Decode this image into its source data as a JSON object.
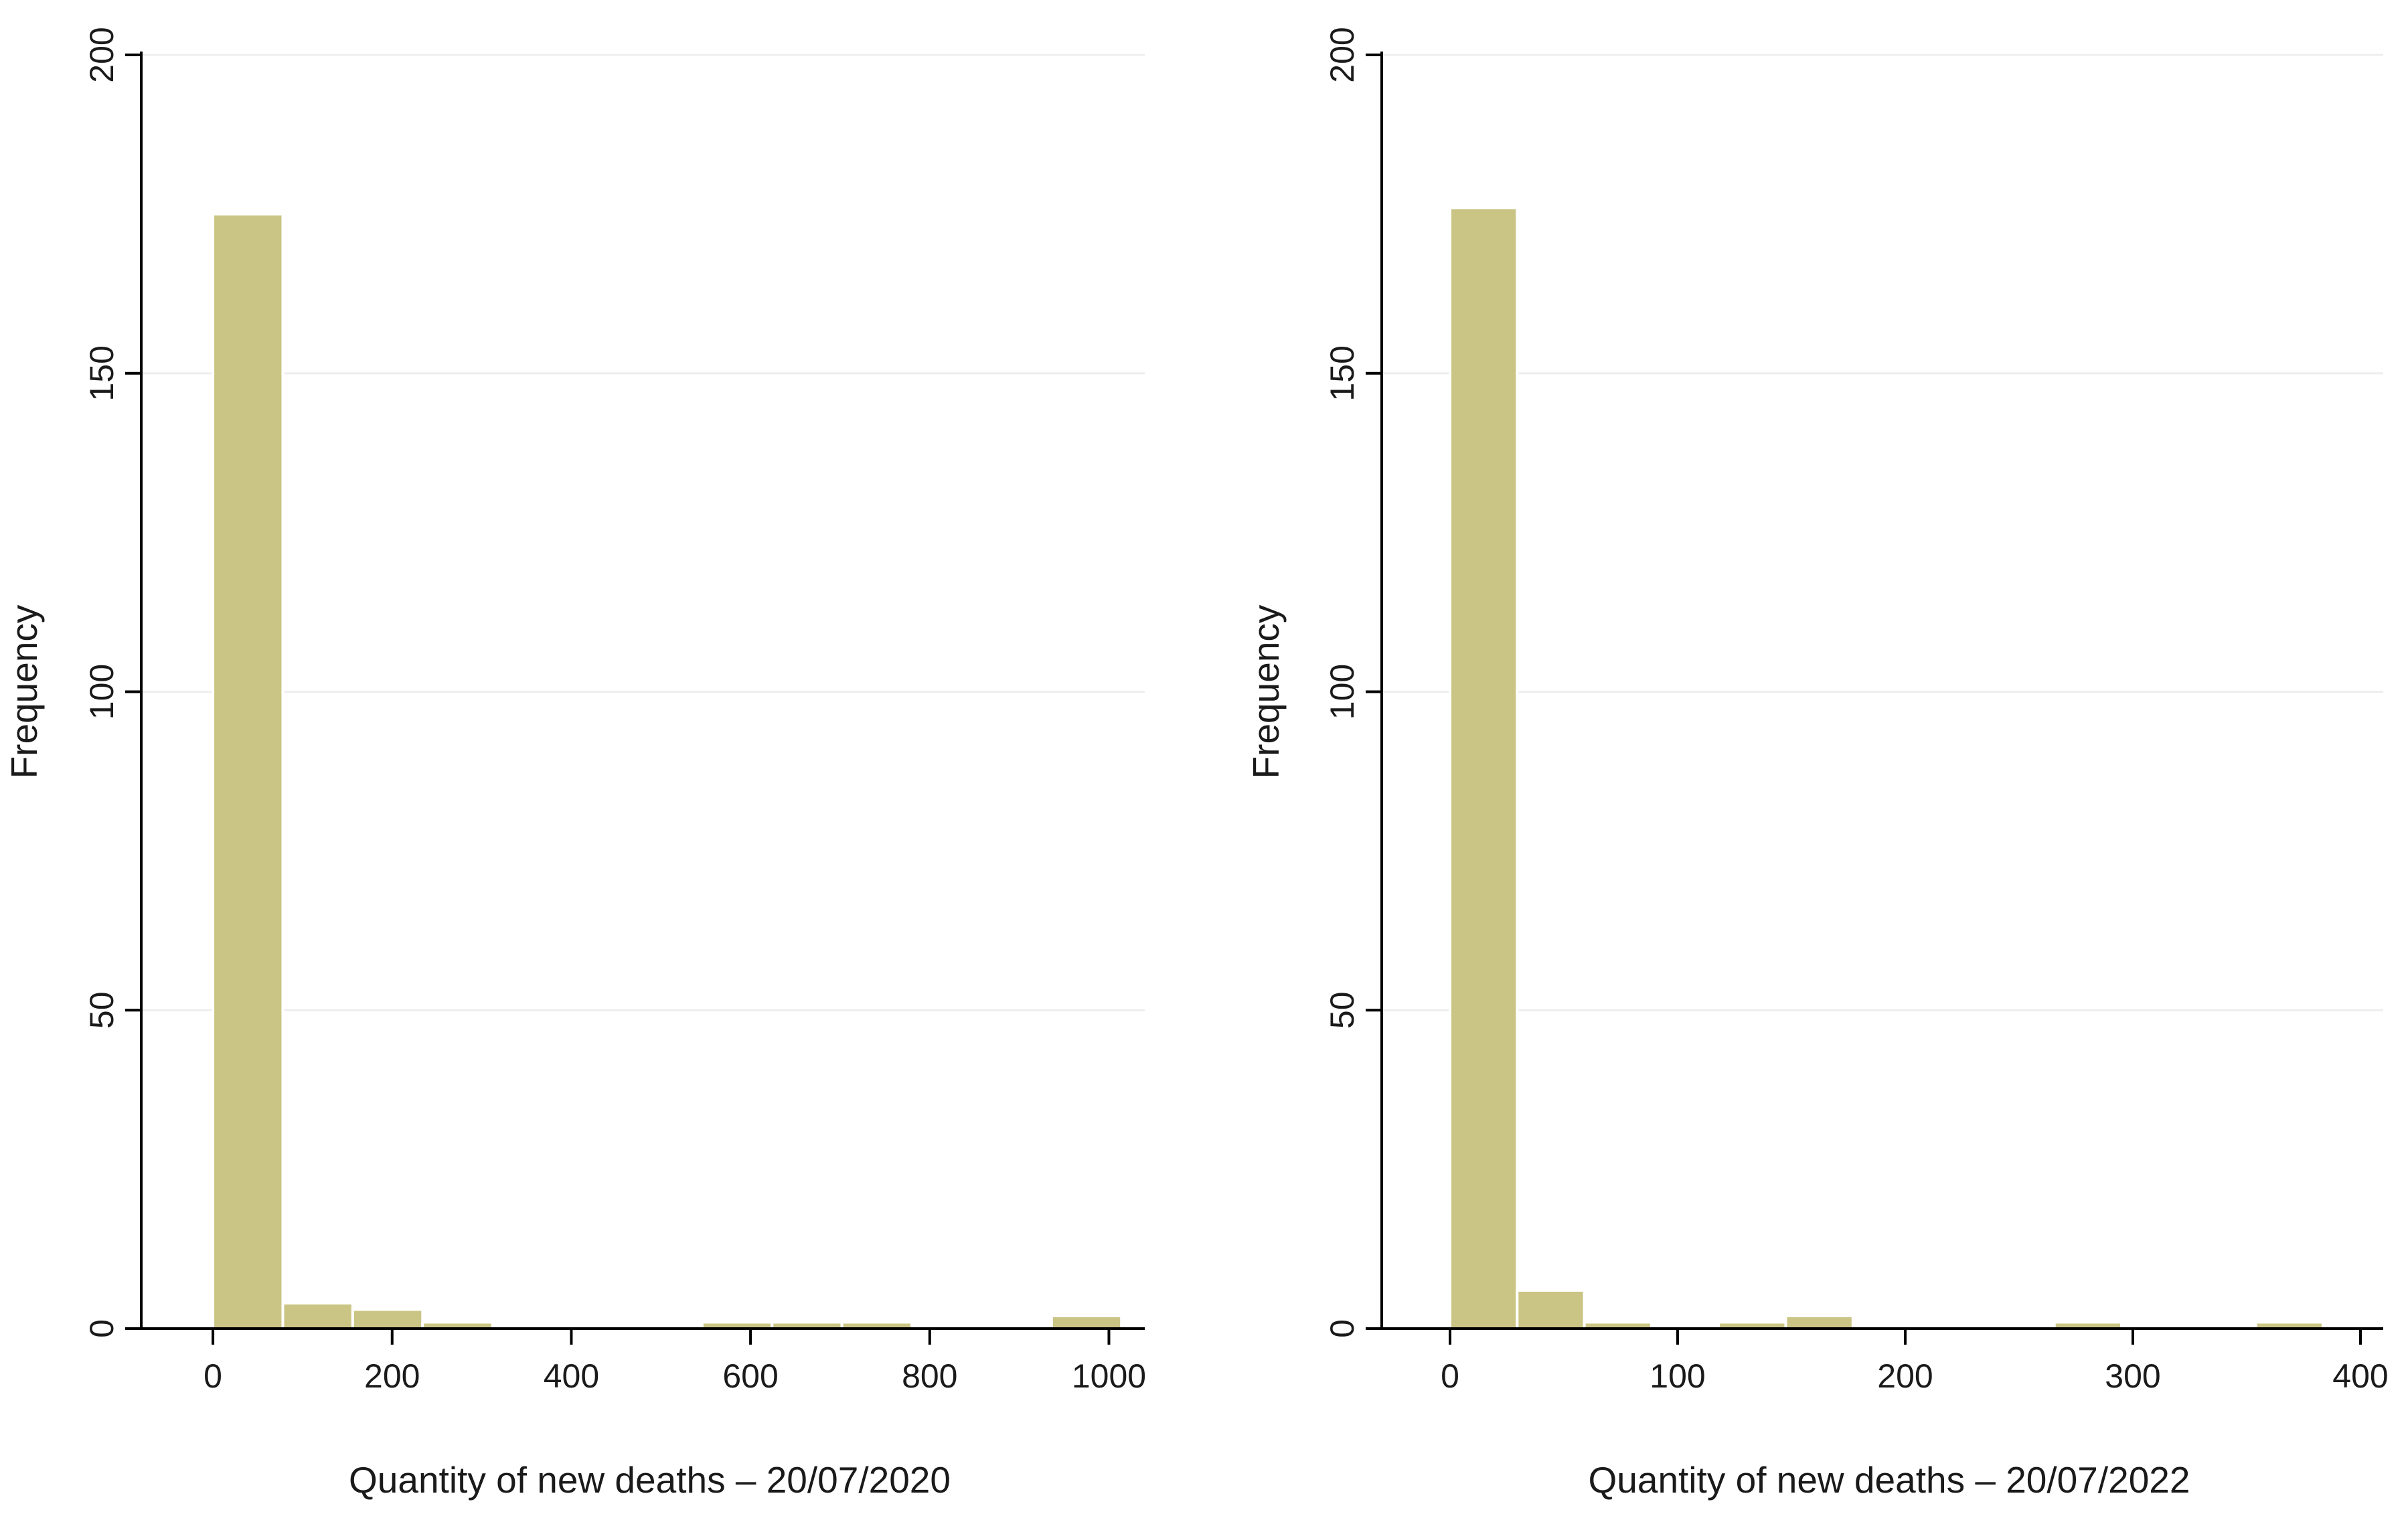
{
  "colors": {
    "bar": "#cbc585",
    "axis": "#000000",
    "grid": "#eeeeee"
  },
  "chart_data": [
    {
      "type": "bar",
      "histogram": true,
      "title": "",
      "xlabel": "Quantity of new deaths – 20/07/2020",
      "ylabel": "Frequency",
      "xlim": [
        -80,
        1040
      ],
      "ylim": [
        0,
        200
      ],
      "xticks": [
        0,
        200,
        400,
        600,
        800,
        1000
      ],
      "yticks": [
        0,
        50,
        100,
        150,
        200
      ],
      "grid": true,
      "bins": [
        {
          "x0": 0,
          "x1": 78,
          "count": 175
        },
        {
          "x0": 78,
          "x1": 156,
          "count": 4
        },
        {
          "x0": 156,
          "x1": 234,
          "count": 3
        },
        {
          "x0": 234,
          "x1": 312,
          "count": 1
        },
        {
          "x0": 312,
          "x1": 390,
          "count": 0
        },
        {
          "x0": 390,
          "x1": 468,
          "count": 0
        },
        {
          "x0": 468,
          "x1": 546,
          "count": 0
        },
        {
          "x0": 546,
          "x1": 624,
          "count": 1
        },
        {
          "x0": 624,
          "x1": 702,
          "count": 1
        },
        {
          "x0": 702,
          "x1": 780,
          "count": 1
        },
        {
          "x0": 780,
          "x1": 858,
          "count": 0
        },
        {
          "x0": 858,
          "x1": 936,
          "count": 0
        },
        {
          "x0": 936,
          "x1": 1014,
          "count": 2
        }
      ]
    },
    {
      "type": "bar",
      "histogram": true,
      "title": "",
      "xlabel": "Quantity of new deaths – 20/07/2022",
      "ylabel": "Frequency",
      "xlim": [
        -30,
        410
      ],
      "ylim": [
        0,
        200
      ],
      "xticks": [
        0,
        100,
        200,
        300,
        400
      ],
      "yticks": [
        0,
        50,
        100,
        150,
        200
      ],
      "grid": true,
      "bins": [
        {
          "x0": 0,
          "x1": 29.5,
          "count": 176
        },
        {
          "x0": 29.5,
          "x1": 59,
          "count": 6
        },
        {
          "x0": 59,
          "x1": 88.5,
          "count": 1
        },
        {
          "x0": 88.5,
          "x1": 118,
          "count": 0
        },
        {
          "x0": 118,
          "x1": 147.5,
          "count": 1
        },
        {
          "x0": 147.5,
          "x1": 177,
          "count": 2
        },
        {
          "x0": 177,
          "x1": 206.5,
          "count": 0
        },
        {
          "x0": 206.5,
          "x1": 236,
          "count": 0
        },
        {
          "x0": 236,
          "x1": 265.5,
          "count": 0
        },
        {
          "x0": 265.5,
          "x1": 295,
          "count": 1
        },
        {
          "x0": 295,
          "x1": 324.5,
          "count": 0
        },
        {
          "x0": 324.5,
          "x1": 354,
          "count": 0
        },
        {
          "x0": 354,
          "x1": 383.5,
          "count": 1
        }
      ]
    }
  ]
}
